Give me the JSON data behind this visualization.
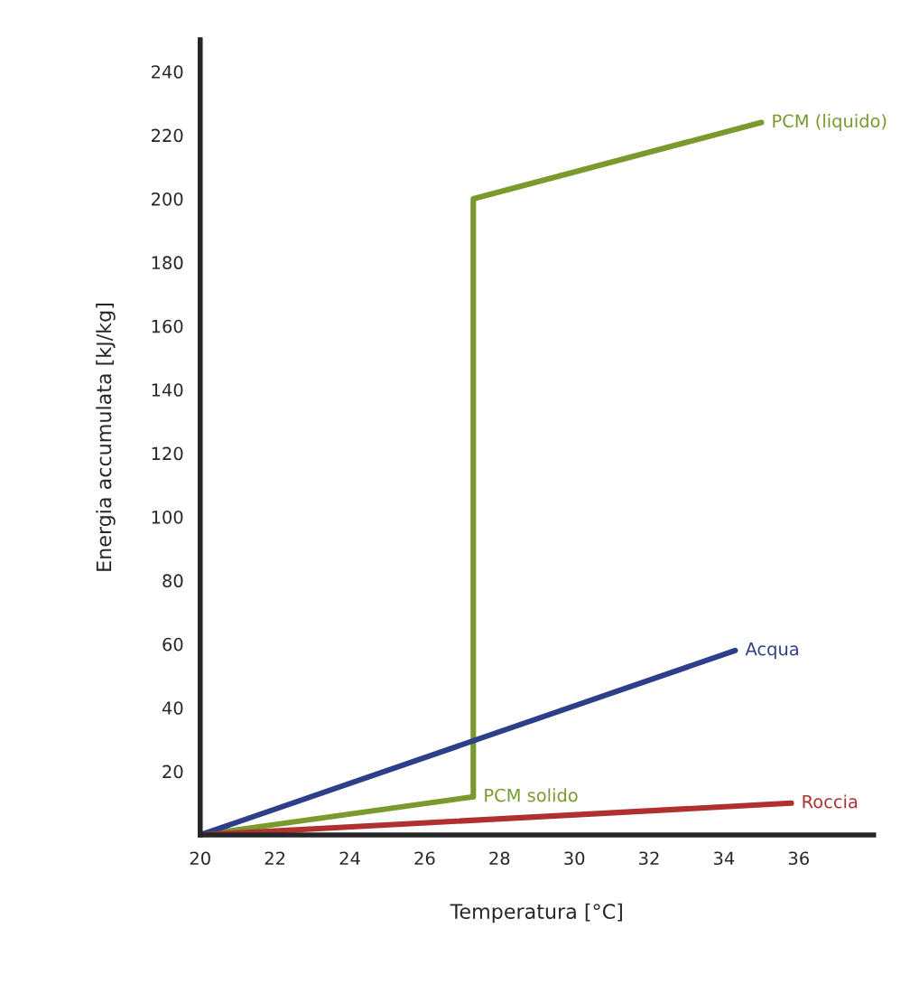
{
  "chart_data": {
    "type": "line",
    "xlabel": "Temperatura [°C]",
    "ylabel": "Energia accumulata [kJ/kg]",
    "xlim": [
      20,
      38
    ],
    "ylim": [
      0,
      250
    ],
    "xticks": [
      20,
      22,
      24,
      26,
      28,
      30,
      32,
      34,
      36
    ],
    "yticks": [
      20,
      40,
      60,
      80,
      100,
      120,
      140,
      160,
      180,
      200,
      220,
      240
    ],
    "grid": false,
    "marker": "none",
    "line_style": "solid",
    "series": [
      {
        "name": "PCM solido",
        "color": "#7a9a2e",
        "x": [
          20,
          27.3
        ],
        "values": [
          0,
          12
        ]
      },
      {
        "name": "PCM (liquido)",
        "color": "#7a9a2e",
        "x": [
          27.3,
          27.3,
          35
        ],
        "values": [
          12,
          200,
          224
        ]
      },
      {
        "name": "Acqua",
        "color": "#2e3f8a",
        "x": [
          20,
          34.3
        ],
        "values": [
          0,
          58
        ]
      },
      {
        "name": "Roccia",
        "color": "#b03030",
        "x": [
          20,
          35.8
        ],
        "values": [
          0,
          10
        ]
      }
    ]
  }
}
